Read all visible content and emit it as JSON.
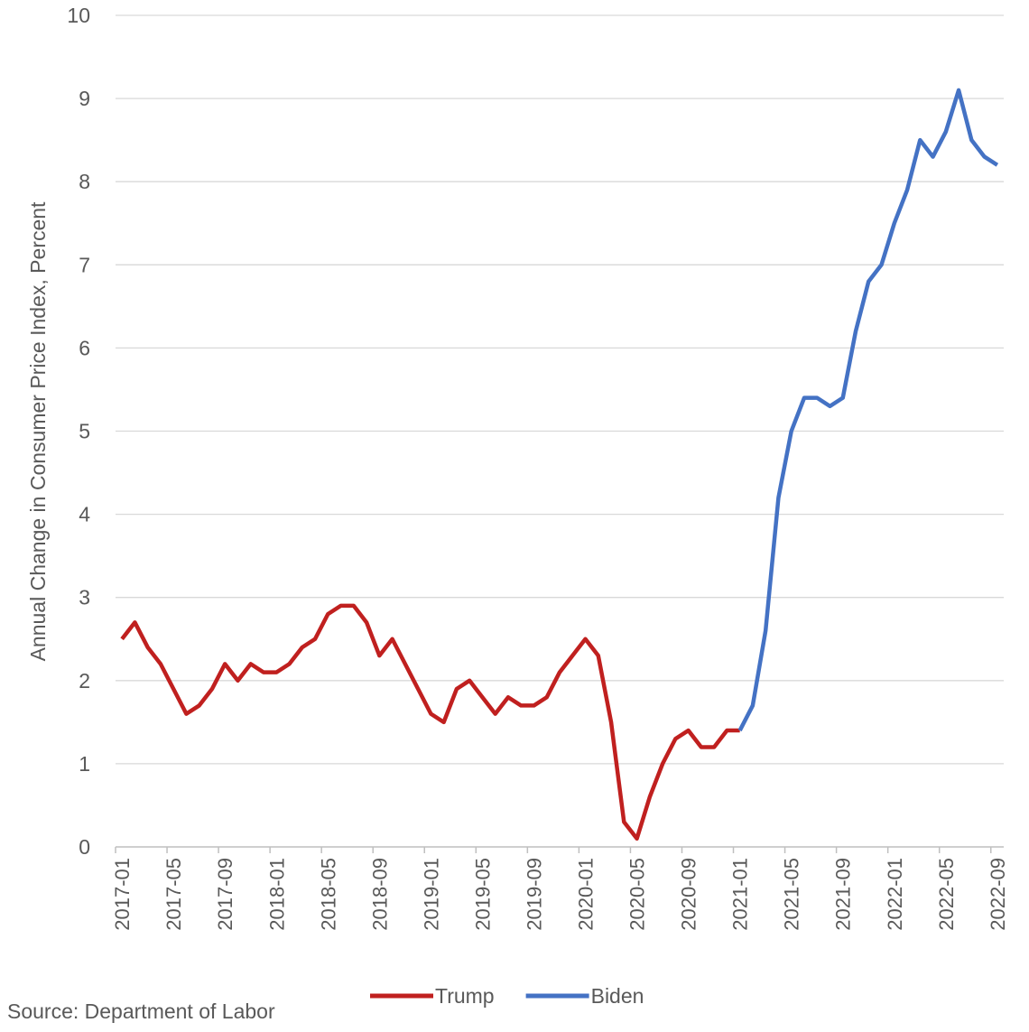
{
  "chart_data": {
    "type": "line",
    "y_label": "Annual Change in Consumer Price Index, Percent",
    "source": "Source: Department of Labor",
    "categories": [
      "2017-01",
      null,
      null,
      null,
      "2017-05",
      null,
      null,
      null,
      "2017-09",
      null,
      null,
      null,
      "2018-01",
      null,
      null,
      null,
      "2018-05",
      null,
      null,
      null,
      "2018-09",
      null,
      null,
      null,
      "2019-01",
      null,
      null,
      null,
      "2019-05",
      null,
      null,
      null,
      "2019-09",
      null,
      null,
      null,
      "2020-01",
      null,
      null,
      null,
      "2020-05",
      null,
      null,
      null,
      "2020-09",
      null,
      null,
      null,
      "2021-01",
      null,
      null,
      null,
      "2021-05",
      null,
      null,
      null,
      "2021-09",
      null,
      null,
      null,
      "2022-01",
      null,
      null,
      null,
      "2022-05",
      null,
      null,
      null,
      "2022-09"
    ],
    "series": [
      {
        "name": "Trump",
        "color": "#c0201f",
        "values": [
          2.5,
          2.7,
          2.4,
          2.2,
          1.9,
          1.6,
          1.7,
          1.9,
          2.2,
          2.0,
          2.2,
          2.1,
          2.1,
          2.2,
          2.4,
          2.5,
          2.8,
          2.9,
          2.9,
          2.7,
          2.3,
          2.5,
          2.2,
          1.9,
          1.6,
          1.5,
          1.9,
          2.0,
          1.8,
          1.6,
          1.8,
          1.7,
          1.7,
          1.8,
          2.1,
          2.3,
          2.5,
          2.3,
          1.5,
          0.3,
          0.1,
          0.6,
          1.0,
          1.3,
          1.4,
          1.2,
          1.2,
          1.4,
          1.4,
          null,
          null,
          null,
          null,
          null,
          null,
          null,
          null,
          null,
          null,
          null,
          null,
          null,
          null,
          null,
          null,
          null,
          null,
          null,
          null
        ]
      },
      {
        "name": "Biden",
        "color": "#4472c4",
        "values": [
          null,
          null,
          null,
          null,
          null,
          null,
          null,
          null,
          null,
          null,
          null,
          null,
          null,
          null,
          null,
          null,
          null,
          null,
          null,
          null,
          null,
          null,
          null,
          null,
          null,
          null,
          null,
          null,
          null,
          null,
          null,
          null,
          null,
          null,
          null,
          null,
          null,
          null,
          null,
          null,
          null,
          null,
          null,
          null,
          null,
          null,
          null,
          null,
          1.4,
          1.7,
          2.6,
          4.2,
          5.0,
          5.4,
          5.4,
          5.3,
          5.4,
          6.2,
          6.8,
          7.0,
          7.5,
          7.9,
          8.5,
          8.3,
          8.6,
          9.1,
          8.5,
          8.3,
          8.2
        ]
      }
    ],
    "ylim": [
      0,
      10
    ],
    "yticks": [
      0,
      1,
      2,
      3,
      4,
      5,
      6,
      7,
      8,
      9,
      10
    ],
    "grid": true,
    "legend": "bottom"
  }
}
